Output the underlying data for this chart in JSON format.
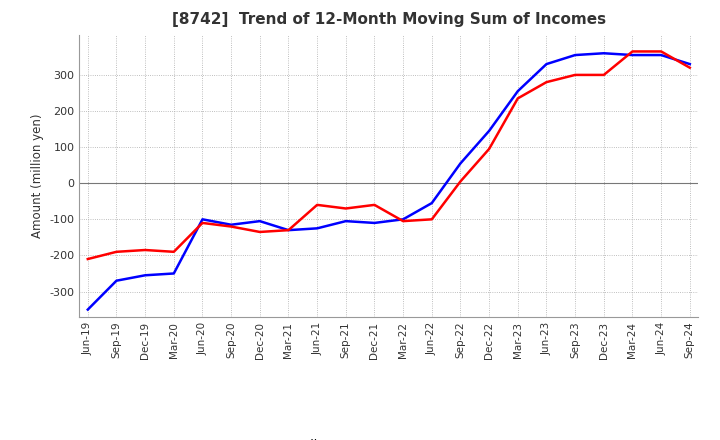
{
  "title": "[8742]  Trend of 12-Month Moving Sum of Incomes",
  "ylabel": "Amount (million yen)",
  "ylim": [
    -370,
    410
  ],
  "yticks": [
    -300,
    -200,
    -100,
    0,
    100,
    200,
    300
  ],
  "background_color": "#ffffff",
  "grid_color": "#aaaaaa",
  "ordinary_income_color": "#0000ff",
  "net_income_color": "#ff0000",
  "x_labels": [
    "Jun-19",
    "Sep-19",
    "Dec-19",
    "Mar-20",
    "Jun-20",
    "Sep-20",
    "Dec-20",
    "Mar-21",
    "Jun-21",
    "Sep-21",
    "Dec-21",
    "Mar-22",
    "Jun-22",
    "Sep-22",
    "Dec-22",
    "Mar-23",
    "Jun-23",
    "Sep-23",
    "Dec-23",
    "Mar-24",
    "Jun-24",
    "Sep-24"
  ],
  "ordinary_income": [
    -350,
    -270,
    -255,
    -250,
    -100,
    -115,
    -105,
    -130,
    -125,
    -105,
    -110,
    -100,
    -55,
    55,
    145,
    255,
    330,
    355,
    360,
    355,
    355,
    330
  ],
  "net_income": [
    -210,
    -190,
    -185,
    -190,
    -110,
    -120,
    -135,
    -130,
    -60,
    -70,
    -60,
    -105,
    -100,
    5,
    95,
    235,
    280,
    300,
    300,
    365,
    365,
    320
  ]
}
